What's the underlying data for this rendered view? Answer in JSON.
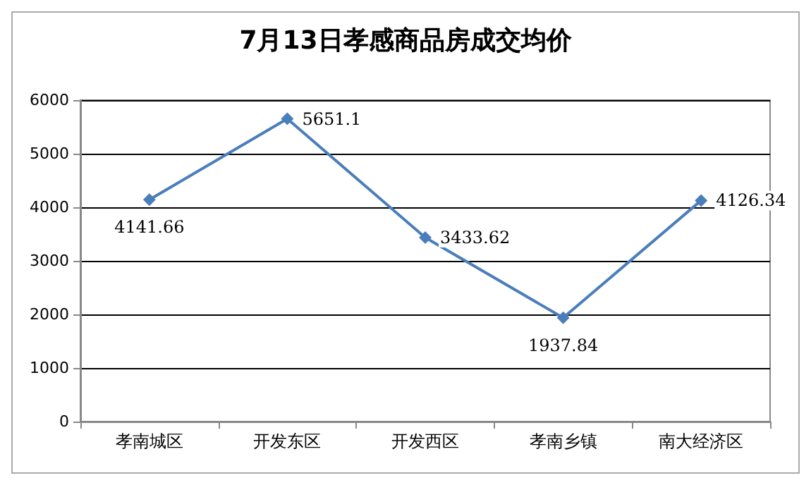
{
  "chart_data": {
    "type": "line",
    "title": "7月13日孝感商品房成交均价",
    "categories": [
      "孝南城区",
      "开发东区",
      "开发西区",
      "孝南乡镇",
      "南大经济区"
    ],
    "values": [
      4141.66,
      5651.1,
      3433.62,
      1937.84,
      4126.34
    ],
    "color": "#4a7ebb",
    "ylim": [
      0,
      6000
    ],
    "yticks": [
      0,
      1000,
      2000,
      3000,
      4000,
      5000,
      6000
    ],
    "grid": "y",
    "marker": "diamond",
    "line_style": "solid",
    "data_labels": true
  }
}
